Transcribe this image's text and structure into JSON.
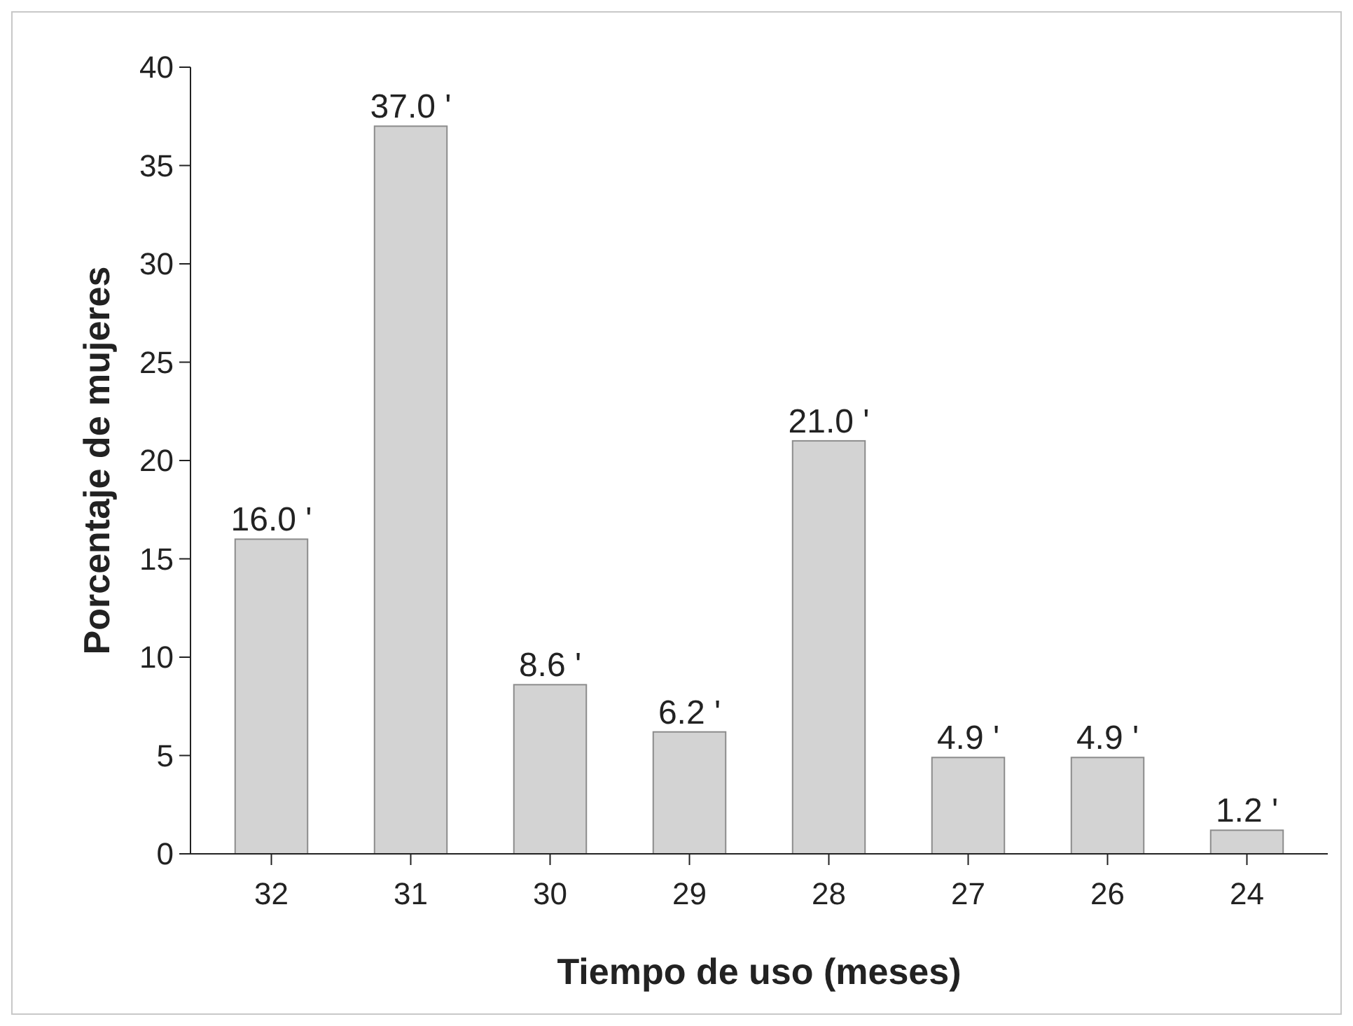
{
  "chart_data": {
    "type": "bar",
    "xlabel": "Tiempo de uso (meses)",
    "ylabel": "Porcentaje de mujeres",
    "categories": [
      "32",
      "31",
      "30",
      "29",
      "28",
      "27",
      "26",
      "24"
    ],
    "values": [
      16.0,
      37.0,
      8.6,
      6.2,
      21.0,
      4.9,
      4.9,
      1.2
    ],
    "value_labels": [
      "16.0 '",
      "37.0 '",
      "8.6 '",
      "6.2 '",
      "21.0 '",
      "4.9 '",
      "4.9 '",
      "1.2 '"
    ],
    "color": "#d3d3d3",
    "ylim": [
      0,
      40
    ],
    "yticks": [
      0,
      5,
      10,
      15,
      20,
      25,
      30,
      35,
      40
    ],
    "grid": false
  }
}
